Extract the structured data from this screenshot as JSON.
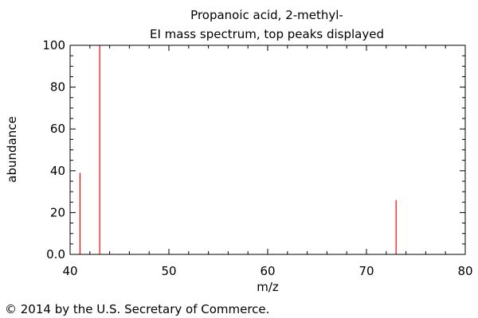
{
  "chart_data": {
    "type": "bar",
    "title": "Propanoic acid, 2-methyl-",
    "subtitle": "EI mass spectrum, top peaks displayed",
    "xlabel": "m/z",
    "ylabel": "abundance",
    "xlim": [
      40,
      80
    ],
    "ylim": [
      0,
      100
    ],
    "x_ticks": [
      40,
      50,
      60,
      70,
      80
    ],
    "x_tick_labels": [
      "40",
      "50",
      "60",
      "70",
      "80"
    ],
    "y_ticks": [
      0,
      20,
      40,
      60,
      80,
      100
    ],
    "y_tick_labels": [
      "0.0",
      "20",
      "40",
      "60",
      "80",
      "100"
    ],
    "grid": false,
    "peaks": [
      {
        "x": 41,
        "y": 39
      },
      {
        "x": 43,
        "y": 100
      },
      {
        "x": 73,
        "y": 26
      }
    ],
    "peak_color": "#ff0000"
  },
  "footer": {
    "copyright": "© 2014 by the U.S. Secretary of Commerce."
  }
}
